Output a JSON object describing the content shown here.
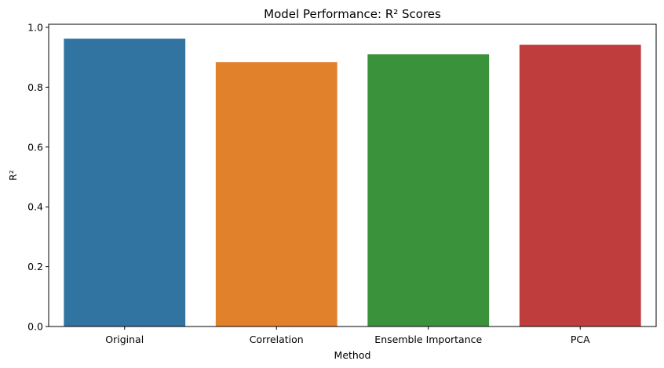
{
  "chart_data": {
    "type": "bar",
    "title": "Model Performance: R² Scores",
    "xlabel": "Method",
    "ylabel": "R²",
    "categories": [
      "Original",
      "Correlation",
      "Ensemble Importance",
      "PCA"
    ],
    "values": [
      0.962,
      0.884,
      0.91,
      0.942
    ],
    "colors": [
      "#3274a1",
      "#e1812c",
      "#3a923a",
      "#c03d3e"
    ],
    "ylim": [
      0,
      1.0
    ],
    "yticks": [
      0.0,
      0.2,
      0.4,
      0.6,
      0.8,
      1.0
    ],
    "ytick_labels": [
      "0.0",
      "0.2",
      "0.4",
      "0.6",
      "0.8",
      "1.0"
    ],
    "grid": false,
    "legend": "none"
  }
}
